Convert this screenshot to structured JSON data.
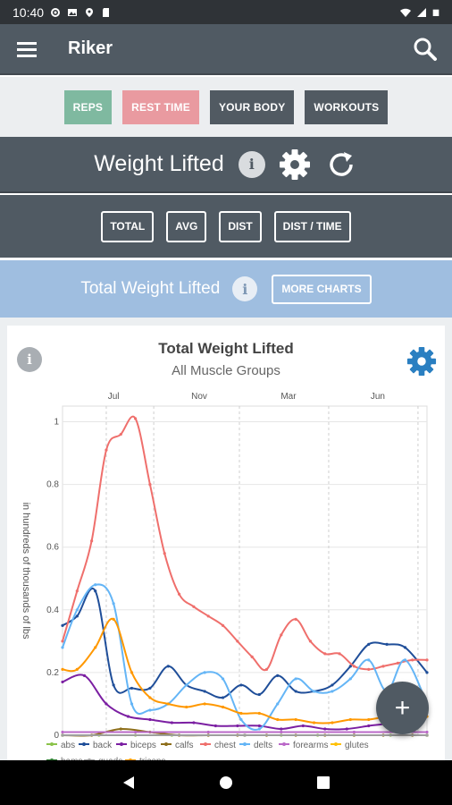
{
  "status_bar": {
    "time": "10:40"
  },
  "app_bar": {
    "title": "Riker",
    "menu_icon": "hamburger-menu-icon",
    "search_icon": "search-icon"
  },
  "filters": [
    {
      "label": "REPS",
      "color": "#7fb9a0"
    },
    {
      "label": "REST TIME",
      "color": "#e99aa0"
    },
    {
      "label": "YOUR BODY",
      "color": "#515a62"
    },
    {
      "label": "WORKOUTS",
      "color": "#515a62"
    }
  ],
  "metric": {
    "title": "Weight Lifted",
    "info": "i"
  },
  "tabs": [
    "TOTAL",
    "AVG",
    "DIST",
    "DIST / TIME"
  ],
  "chart_header": {
    "title": "Total Weight Lifted",
    "info": "i",
    "more_label": "MORE CHARTS"
  },
  "card": {
    "info": "i"
  },
  "fab": {
    "label": "+"
  },
  "chart_data": {
    "type": "line",
    "title": "Total Weight Lifted",
    "subtitle": "All Muscle Groups",
    "ylabel": "in hundreds of thousands of lbs",
    "xlabel": "",
    "ylim": [
      0,
      1.05
    ],
    "xlim": [
      0,
      100
    ],
    "x_ticks": [
      {
        "label": "Jul",
        "x": 14
      },
      {
        "label": "Nov",
        "x": 37.5
      },
      {
        "label": "Mar",
        "x": 62
      },
      {
        "label": "Jun",
        "x": 86.5
      }
    ],
    "y_ticks": [
      0,
      0.2,
      0.4,
      0.6,
      0.8,
      1
    ],
    "grid": true,
    "legend_position": "bottom",
    "series": [
      {
        "name": "abs",
        "color": "#8bc34a",
        "x": [
          0,
          10,
          20,
          30,
          40,
          50,
          60,
          70,
          80,
          90,
          100
        ],
        "y": [
          0,
          0,
          0,
          0,
          0,
          0,
          0,
          0,
          0,
          0,
          0
        ]
      },
      {
        "name": "back",
        "color": "#1f4e99",
        "x": [
          0,
          4,
          9,
          14,
          19,
          24,
          29,
          34,
          39,
          44,
          49,
          54,
          59,
          64,
          69,
          74,
          79,
          84,
          89,
          94,
          100
        ],
        "y": [
          0.35,
          0.38,
          0.46,
          0.16,
          0.15,
          0.15,
          0.22,
          0.16,
          0.14,
          0.12,
          0.16,
          0.13,
          0.19,
          0.14,
          0.14,
          0.16,
          0.22,
          0.29,
          0.29,
          0.28,
          0.2
        ]
      },
      {
        "name": "biceps",
        "color": "#7b1fa2",
        "x": [
          0,
          6,
          12,
          18,
          24,
          30,
          36,
          42,
          48,
          54,
          60,
          66,
          72,
          78,
          84,
          90,
          96,
          100
        ],
        "y": [
          0.17,
          0.19,
          0.1,
          0.06,
          0.05,
          0.04,
          0.04,
          0.03,
          0.03,
          0.03,
          0.02,
          0.03,
          0.02,
          0.02,
          0.03,
          0.04,
          0.07,
          0.08
        ]
      },
      {
        "name": "calfs",
        "color": "#8d6e1a",
        "x": [
          0,
          8,
          16,
          24,
          32,
          40,
          48,
          56,
          64,
          72,
          80,
          88,
          96,
          100
        ],
        "y": [
          0,
          0,
          0.02,
          0.01,
          0,
          0,
          0,
          0,
          0,
          0,
          0,
          0,
          0,
          0
        ]
      },
      {
        "name": "chest",
        "color": "#ef6f6c",
        "x": [
          0,
          4,
          8,
          12,
          16,
          20,
          24,
          28,
          32,
          36,
          40,
          44,
          48,
          52,
          56,
          60,
          64,
          68,
          72,
          76,
          80,
          84,
          88,
          92,
          96,
          100
        ],
        "y": [
          0.3,
          0.46,
          0.62,
          0.91,
          0.96,
          1.01,
          0.8,
          0.58,
          0.45,
          0.41,
          0.38,
          0.35,
          0.3,
          0.25,
          0.21,
          0.32,
          0.37,
          0.3,
          0.26,
          0.26,
          0.22,
          0.21,
          0.22,
          0.23,
          0.24,
          0.24
        ]
      },
      {
        "name": "delts",
        "color": "#64b5f6",
        "x": [
          0,
          4,
          9,
          14,
          19,
          24,
          29,
          34,
          39,
          44,
          49,
          54,
          59,
          64,
          69,
          74,
          79,
          84,
          89,
          94,
          100
        ],
        "y": [
          0.28,
          0.4,
          0.48,
          0.42,
          0.1,
          0.08,
          0.1,
          0.16,
          0.2,
          0.18,
          0.05,
          0.02,
          0.1,
          0.18,
          0.14,
          0.14,
          0.18,
          0.24,
          0.14,
          0.24,
          0.1
        ]
      },
      {
        "name": "forearms",
        "color": "#ba68c8",
        "x": [
          0,
          20,
          40,
          60,
          80,
          100
        ],
        "y": [
          0.01,
          0.01,
          0.01,
          0.01,
          0.01,
          0.01
        ]
      },
      {
        "name": "glutes",
        "color": "#ffc107",
        "x": [
          0,
          50,
          100
        ],
        "y": [
          0,
          0,
          0
        ]
      },
      {
        "name": "hams",
        "color": "#2e7d32",
        "x": [
          0,
          50,
          100
        ],
        "y": [
          0,
          0,
          0
        ]
      },
      {
        "name": "quads",
        "color": "#9e9e9e",
        "x": [
          0,
          50,
          100
        ],
        "y": [
          0,
          0,
          0
        ]
      },
      {
        "name": "triceps",
        "color": "#ff9800",
        "x": [
          0,
          4,
          9,
          14,
          19,
          24,
          29,
          34,
          39,
          44,
          49,
          54,
          59,
          64,
          69,
          74,
          79,
          84,
          89,
          94,
          100
        ],
        "y": [
          0.21,
          0.21,
          0.28,
          0.37,
          0.2,
          0.12,
          0.1,
          0.09,
          0.1,
          0.09,
          0.07,
          0.07,
          0.05,
          0.05,
          0.04,
          0.04,
          0.05,
          0.05,
          0.06,
          0.07,
          0.06
        ]
      }
    ]
  }
}
